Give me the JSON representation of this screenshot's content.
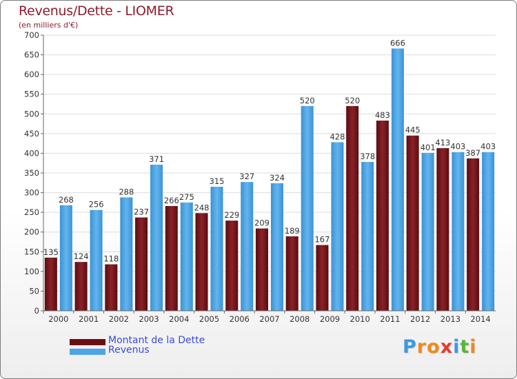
{
  "header": {
    "title": "Revenus/Dette - LIOMER",
    "subtitle": "(en milliers d'€)"
  },
  "chart_data": {
    "type": "bar",
    "title": "Revenus/Dette - LIOMER",
    "ylabel": "(en milliers d'€)",
    "xlabel": "",
    "categories": [
      "2000",
      "2001",
      "2002",
      "2003",
      "2004",
      "2005",
      "2006",
      "2007",
      "2008",
      "2009",
      "2010",
      "2011",
      "2012",
      "2013",
      "2014"
    ],
    "series": [
      {
        "name": "Montant de la Dette",
        "color": "#7a1a1f",
        "values": [
          135,
          124,
          118,
          237,
          266,
          248,
          229,
          209,
          189,
          167,
          520,
          483,
          445,
          413,
          387
        ]
      },
      {
        "name": "Revenus",
        "color": "#4ea6e6",
        "values": [
          268,
          256,
          288,
          371,
          275,
          315,
          327,
          324,
          520,
          428,
          378,
          666,
          401,
          403,
          403
        ]
      }
    ],
    "ylim": [
      0,
      700
    ],
    "yticks": [
      0,
      50,
      100,
      150,
      200,
      250,
      300,
      350,
      400,
      450,
      500,
      550,
      600,
      650,
      700
    ],
    "grid": true,
    "legend_position": "bottom-left"
  },
  "legend": {
    "items": [
      {
        "label": "Montant de la Dette",
        "color": "#6b0f14"
      },
      {
        "label": "Revenus",
        "color": "#4ea6e6"
      }
    ]
  },
  "logo": {
    "letters": [
      "P",
      "r",
      "o",
      "x",
      "i",
      "t",
      "i"
    ],
    "colors": [
      "#3a9be0",
      "#f08a1c",
      "#f08a1c",
      "#e23b2e",
      "#3a9be0",
      "#5ab33a",
      "#f08a1c"
    ]
  }
}
